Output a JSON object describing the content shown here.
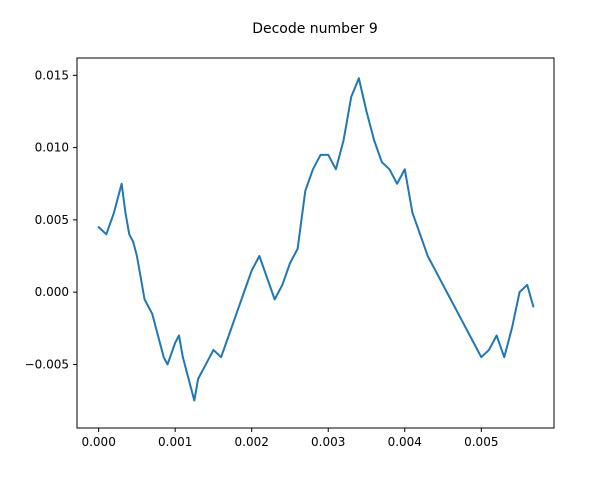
{
  "chart_data": {
    "type": "line",
    "title": "Decode number 9",
    "xlabel": "",
    "ylabel": "",
    "xlim": [
      -0.000283,
      0.00595
    ],
    "ylim": [
      -0.0094,
      0.0162
    ],
    "x_ticks": [
      0.0,
      0.001,
      0.002,
      0.003,
      0.004,
      0.005
    ],
    "x_tick_labels": [
      "0.000",
      "0.001",
      "0.002",
      "0.003",
      "0.004",
      "0.005"
    ],
    "y_ticks": [
      -0.005,
      0.0,
      0.005,
      0.01,
      0.015
    ],
    "y_tick_labels": [
      "−0.005",
      "0.000",
      "0.005",
      "0.010",
      "0.015"
    ],
    "grid": false,
    "series": [
      {
        "color": "#1f77b4",
        "x": [
          0.0,
          0.0001,
          0.0002,
          0.00025,
          0.0003,
          0.00035,
          0.0004,
          0.00045,
          0.0005,
          0.00055,
          0.0006,
          0.0007,
          0.0008,
          0.00085,
          0.0009,
          0.001,
          0.00105,
          0.0011,
          0.0012,
          0.00125,
          0.0013,
          0.0014,
          0.0015,
          0.0016,
          0.0017,
          0.0018,
          0.0019,
          0.002,
          0.0021,
          0.0022,
          0.0023,
          0.0024,
          0.0025,
          0.0026,
          0.0027,
          0.0028,
          0.0029,
          0.003,
          0.0031,
          0.0032,
          0.0033,
          0.0034,
          0.0035,
          0.0036,
          0.0037,
          0.0038,
          0.0039,
          0.004,
          0.0041,
          0.0042,
          0.0043,
          0.0044,
          0.0045,
          0.0046,
          0.0047,
          0.0048,
          0.0049,
          0.005,
          0.0051,
          0.0052,
          0.0053,
          0.0054,
          0.0055,
          0.0056,
          0.00568
        ],
        "y": [
          0.0045,
          0.004,
          0.0055,
          0.0065,
          0.0075,
          0.0055,
          0.004,
          0.0035,
          0.0025,
          0.001,
          -0.0005,
          -0.0015,
          -0.0035,
          -0.0045,
          -0.005,
          -0.0035,
          -0.003,
          -0.0045,
          -0.0065,
          -0.0075,
          -0.006,
          -0.005,
          -0.004,
          -0.0045,
          -0.003,
          -0.0015,
          0.0,
          0.0015,
          0.0025,
          0.001,
          -0.0005,
          0.0005,
          0.002,
          0.003,
          0.007,
          0.0085,
          0.0095,
          0.0095,
          0.0085,
          0.0105,
          0.0135,
          0.0148,
          0.0125,
          0.0105,
          0.009,
          0.0085,
          0.0075,
          0.0085,
          0.0055,
          0.004,
          0.0025,
          0.0015,
          0.0005,
          -0.0005,
          -0.0015,
          -0.0025,
          -0.0035,
          -0.0045,
          -0.004,
          -0.003,
          -0.0045,
          -0.0025,
          0.0,
          0.0005,
          -0.001
        ]
      }
    ]
  }
}
